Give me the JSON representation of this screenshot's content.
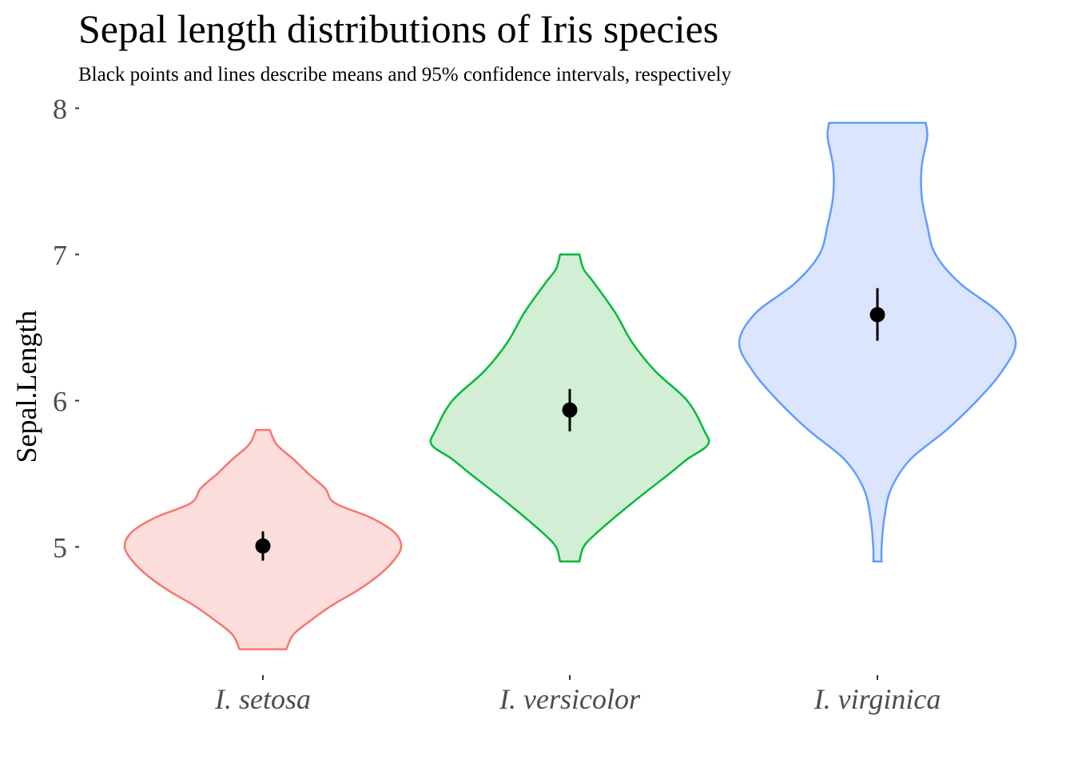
{
  "chart_data": {
    "type": "violin",
    "title": "Sepal length distributions of Iris species",
    "subtitle": "Black points and lines describe means and 95% confidence intervals, respectively",
    "xlabel": "",
    "ylabel": "Sepal.Length",
    "ylim": [
      4.2,
      8.1
    ],
    "yticks": [
      5,
      6,
      7,
      8
    ],
    "grid": false,
    "categories": [
      "I. setosa",
      "I. versicolor",
      "I. virginica"
    ],
    "series": [
      {
        "category": "I. setosa",
        "line_color": "#F8766D",
        "fill_color": "#FDDEDD",
        "min": 4.3,
        "max": 5.8,
        "mean": 5.006,
        "ci": [
          4.906,
          5.106
        ],
        "density_profile": [
          [
            4.3,
            0.17
          ],
          [
            4.4,
            0.22
          ],
          [
            4.5,
            0.35
          ],
          [
            4.6,
            0.5
          ],
          [
            4.7,
            0.68
          ],
          [
            4.8,
            0.83
          ],
          [
            4.9,
            0.94
          ],
          [
            5.0,
            1.0
          ],
          [
            5.1,
            0.95
          ],
          [
            5.2,
            0.78
          ],
          [
            5.3,
            0.52
          ],
          [
            5.4,
            0.45
          ],
          [
            5.5,
            0.33
          ],
          [
            5.6,
            0.22
          ],
          [
            5.7,
            0.1
          ],
          [
            5.8,
            0.05
          ]
        ]
      },
      {
        "category": "I. versicolor",
        "line_color": "#00BA38",
        "fill_color": "#D2EFD6",
        "min": 4.9,
        "max": 7.0,
        "mean": 5.936,
        "ci": [
          5.79,
          6.08
        ],
        "density_profile": [
          [
            4.9,
            0.07
          ],
          [
            5.0,
            0.1
          ],
          [
            5.1,
            0.2
          ],
          [
            5.3,
            0.45
          ],
          [
            5.5,
            0.72
          ],
          [
            5.6,
            0.85
          ],
          [
            5.7,
            1.0
          ],
          [
            5.8,
            0.97
          ],
          [
            6.0,
            0.85
          ],
          [
            6.2,
            0.62
          ],
          [
            6.4,
            0.45
          ],
          [
            6.6,
            0.33
          ],
          [
            6.8,
            0.18
          ],
          [
            6.9,
            0.1
          ],
          [
            7.0,
            0.07
          ]
        ]
      },
      {
        "category": "I. virginica",
        "line_color": "#619CFF",
        "fill_color": "#DCE5FE",
        "min": 4.9,
        "max": 7.9,
        "mean": 6.588,
        "ci": [
          6.41,
          6.77
        ],
        "density_profile": [
          [
            4.9,
            0.03
          ],
          [
            5.0,
            0.03
          ],
          [
            5.2,
            0.05
          ],
          [
            5.4,
            0.1
          ],
          [
            5.6,
            0.24
          ],
          [
            5.8,
            0.5
          ],
          [
            6.0,
            0.72
          ],
          [
            6.2,
            0.9
          ],
          [
            6.4,
            1.0
          ],
          [
            6.6,
            0.88
          ],
          [
            6.8,
            0.6
          ],
          [
            7.0,
            0.42
          ],
          [
            7.2,
            0.36
          ],
          [
            7.4,
            0.32
          ],
          [
            7.6,
            0.32
          ],
          [
            7.8,
            0.36
          ],
          [
            7.9,
            0.35
          ]
        ]
      }
    ],
    "summary_marker_color": "#000000"
  }
}
